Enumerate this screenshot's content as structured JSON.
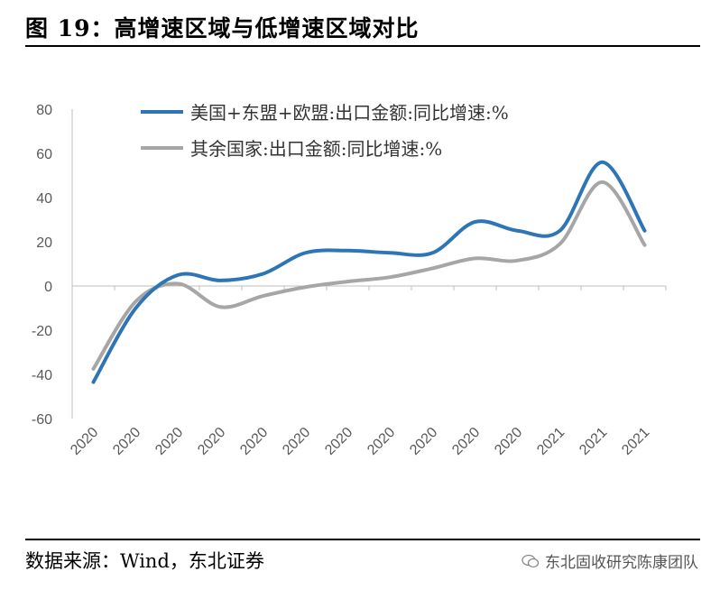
{
  "header": {
    "title": "图 19：高增速区域与低增速区域对比"
  },
  "footer": {
    "source": "数据来源：Wind，东北证券"
  },
  "watermark": {
    "text": "东北固收研究陈康团队",
    "icon": "wechat-icon"
  },
  "colors": {
    "series1": "#2E75B6",
    "series2": "#A6A6A6",
    "axis": "#BFBFBF",
    "text": "#595959"
  },
  "chart_data": {
    "type": "line",
    "title": "",
    "xlabel": "",
    "ylabel": "",
    "ylim": [
      -60,
      80
    ],
    "yticks": [
      80,
      60,
      40,
      20,
      0,
      -20,
      -40,
      -60
    ],
    "ytick_labels": [
      "80",
      "60",
      "40",
      "20",
      "0",
      "-20",
      "-40",
      "-60"
    ],
    "categories": [
      "2020",
      "2020",
      "2020",
      "2020",
      "2020",
      "2020",
      "2020",
      "2020",
      "2020",
      "2020",
      "2020",
      "2021",
      "2021",
      "2021"
    ],
    "grid": false,
    "legend": "top",
    "series": [
      {
        "name": "美国+东盟+欧盟:出口金额:同比增速:%",
        "values": [
          -43.5,
          -10,
          5,
          2.5,
          5.5,
          15,
          16,
          15,
          15,
          29,
          25,
          25,
          56,
          25
        ]
      },
      {
        "name": "其余国家:出口金额:同比增速:%",
        "values": [
          -37.5,
          -7,
          1,
          -9.5,
          -4.5,
          -0.5,
          2,
          4,
          8,
          12.5,
          11.5,
          19,
          47,
          18.5
        ]
      }
    ]
  }
}
